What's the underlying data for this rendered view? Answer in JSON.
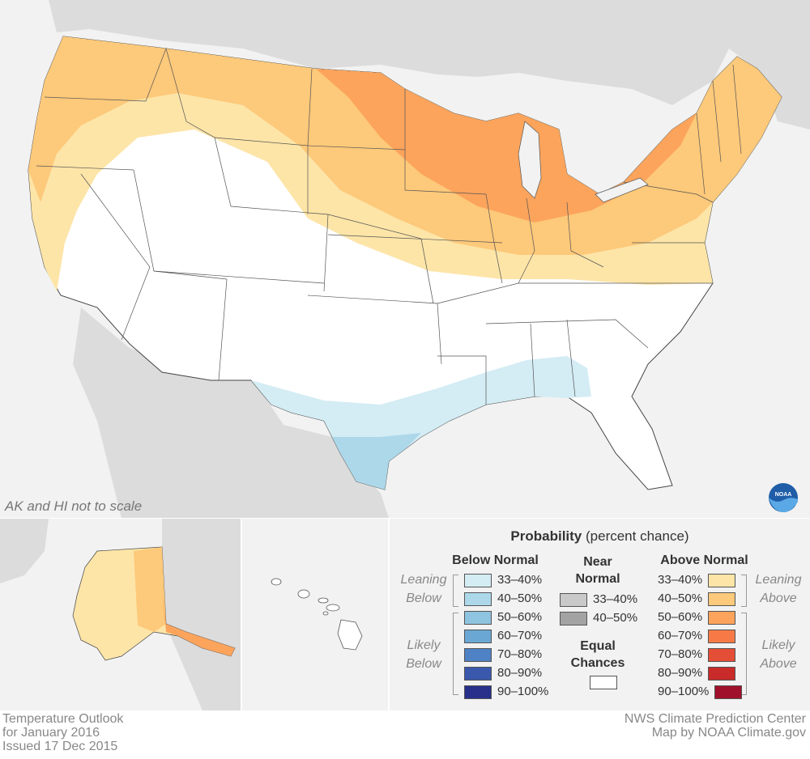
{
  "map": {
    "scale_note": "AK and HI not to scale",
    "colors": {
      "land_outside": "#dcdcdc",
      "water": "#f2f2f2",
      "equal_chances": "#ffffff",
      "above_33_40": "#fde5a8",
      "above_40_50": "#fdc97a",
      "above_50_60": "#fca45c",
      "below_33_40": "#d4ecf4",
      "below_40_50": "#acd8ea"
    }
  },
  "legend": {
    "title_bold": "Probability",
    "title_rest": "(percent chance)",
    "below": {
      "heading": "Below Normal",
      "leaning_label": "Leaning Below",
      "likely_label": "Likely Below",
      "items": [
        {
          "label": "33–40%",
          "color": "#d4ecf4"
        },
        {
          "label": "40–50%",
          "color": "#acd8ea"
        },
        {
          "label": "50–60%",
          "color": "#8ec4df"
        },
        {
          "label": "60–70%",
          "color": "#6aa7d4"
        },
        {
          "label": "70–80%",
          "color": "#4f82c4"
        },
        {
          "label": "80–90%",
          "color": "#3a59ad"
        },
        {
          "label": "90–100%",
          "color": "#28308c"
        }
      ]
    },
    "near": {
      "heading": "Near Normal",
      "items": [
        {
          "label": "33–40%",
          "color": "#c9c9c9"
        },
        {
          "label": "40–50%",
          "color": "#a3a3a3"
        }
      ],
      "equal_heading": "Equal Chances",
      "equal_color": "#ffffff"
    },
    "above": {
      "heading": "Above Normal",
      "leaning_label": "Leaning Above",
      "likely_label": "Likely Above",
      "items": [
        {
          "label": "33–40%",
          "color": "#fde5a8"
        },
        {
          "label": "40–50%",
          "color": "#fdc97a"
        },
        {
          "label": "50–60%",
          "color": "#fca45c"
        },
        {
          "label": "60–70%",
          "color": "#f77a46"
        },
        {
          "label": "70–80%",
          "color": "#e44e36"
        },
        {
          "label": "80–90%",
          "color": "#c92a2a"
        },
        {
          "label": "90–100%",
          "color": "#a0102a"
        }
      ]
    }
  },
  "footer": {
    "line1": "Temperature Outlook",
    "line2": "for January 2016",
    "line3": "Issued 17 Dec 2015",
    "credit1": "NWS Climate Prediction Center",
    "credit2": "Map by NOAA Climate.gov"
  }
}
